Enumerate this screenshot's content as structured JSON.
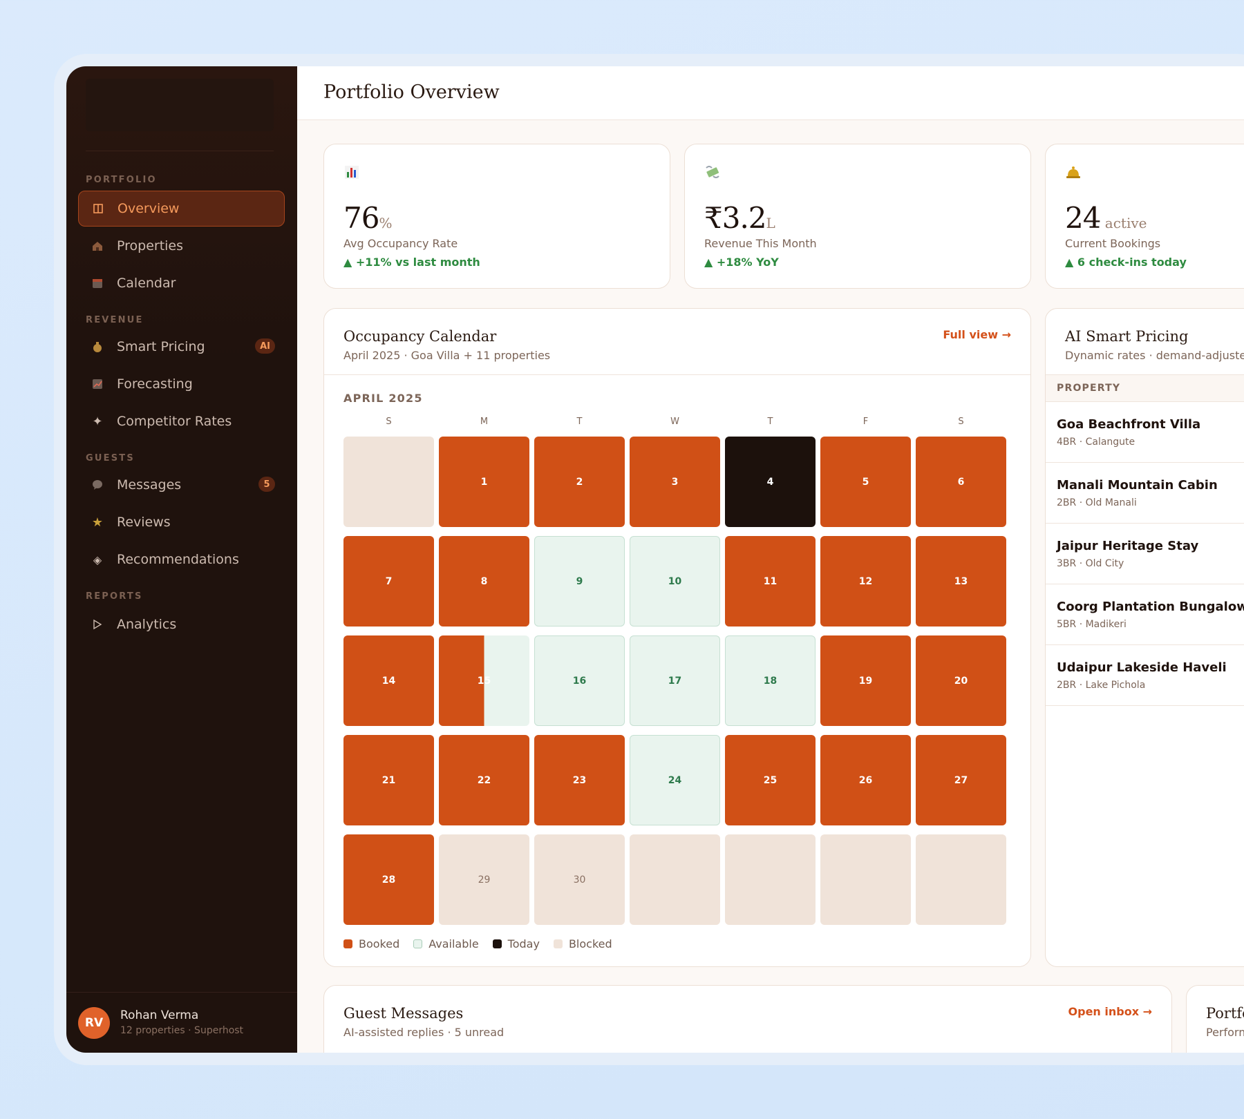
{
  "sidebar": {
    "sections": [
      {
        "label": "PORTFOLIO"
      },
      {
        "label": "REVENUE"
      },
      {
        "label": "GUESTS"
      },
      {
        "label": "REPORTS"
      }
    ],
    "items": [
      {
        "label": "Overview",
        "icon": "grid-icon"
      },
      {
        "label": "Properties",
        "icon": "house-icon"
      },
      {
        "label": "Calendar",
        "icon": "calendar-icon"
      },
      {
        "label": "Smart Pricing",
        "icon": "money-bag-icon",
        "badge": "AI"
      },
      {
        "label": "Forecasting",
        "icon": "chart-up-icon"
      },
      {
        "label": "Competitor Rates",
        "icon": "sparkle-icon"
      },
      {
        "label": "Messages",
        "icon": "speech-bubble-icon",
        "badge": "5"
      },
      {
        "label": "Reviews",
        "icon": "star-icon"
      },
      {
        "label": "Recommendations",
        "icon": "diamond-icon"
      },
      {
        "label": "Analytics",
        "icon": "play-outline-icon"
      }
    ],
    "user": {
      "initials": "RV",
      "name": "Rohan Verma",
      "sub": "12 properties · Superhost"
    }
  },
  "header": {
    "title": "Portfolio Overview"
  },
  "kpis": [
    {
      "icon": "bar-chart-icon",
      "value": "76",
      "unit": "%",
      "label": "Avg Occupancy Rate",
      "delta": "▲ +11% vs last month"
    },
    {
      "icon": "money-wings-icon",
      "value": "₹3.2",
      "unit": "L",
      "label": "Revenue This Month",
      "delta": "▲ +18% YoY"
    },
    {
      "icon": "bell-icon",
      "value": "24",
      "unit": " active",
      "label": "Current Bookings",
      "delta": "▲ 6 check-ins today"
    }
  ],
  "calendar": {
    "title": "Occupancy Calendar",
    "subtitle": "April 2025 · Goa Villa + 11 properties",
    "link": "Full view →",
    "month": "APRIL 2025",
    "weekdays": [
      "S",
      "M",
      "T",
      "W",
      "T",
      "F",
      "S"
    ],
    "days": [
      {
        "n": "",
        "s": "blocked"
      },
      {
        "n": "1",
        "s": "booked"
      },
      {
        "n": "2",
        "s": "booked"
      },
      {
        "n": "3",
        "s": "booked"
      },
      {
        "n": "4",
        "s": "today"
      },
      {
        "n": "5",
        "s": "booked"
      },
      {
        "n": "6",
        "s": "booked"
      },
      {
        "n": "7",
        "s": "booked"
      },
      {
        "n": "8",
        "s": "booked"
      },
      {
        "n": "9",
        "s": "available"
      },
      {
        "n": "10",
        "s": "available"
      },
      {
        "n": "11",
        "s": "booked"
      },
      {
        "n": "12",
        "s": "booked"
      },
      {
        "n": "13",
        "s": "booked"
      },
      {
        "n": "14",
        "s": "booked"
      },
      {
        "n": "15",
        "s": "split"
      },
      {
        "n": "16",
        "s": "available"
      },
      {
        "n": "17",
        "s": "available"
      },
      {
        "n": "18",
        "s": "available"
      },
      {
        "n": "19",
        "s": "booked"
      },
      {
        "n": "20",
        "s": "booked"
      },
      {
        "n": "21",
        "s": "booked"
      },
      {
        "n": "22",
        "s": "booked"
      },
      {
        "n": "23",
        "s": "booked"
      },
      {
        "n": "24",
        "s": "available"
      },
      {
        "n": "25",
        "s": "booked"
      },
      {
        "n": "26",
        "s": "booked"
      },
      {
        "n": "27",
        "s": "booked"
      },
      {
        "n": "28",
        "s": "booked"
      },
      {
        "n": "29",
        "s": "blocked"
      },
      {
        "n": "30",
        "s": "blocked"
      },
      {
        "n": "",
        "s": "blocked"
      },
      {
        "n": "",
        "s": "blocked"
      },
      {
        "n": "",
        "s": "blocked"
      },
      {
        "n": "",
        "s": "blocked"
      }
    ],
    "legend": [
      {
        "label": "Booked",
        "color": "#d05016"
      },
      {
        "label": "Available",
        "color": "#e9f4ee"
      },
      {
        "label": "Today",
        "color": "#1c110c"
      },
      {
        "label": "Blocked",
        "color": "#f0e3d9"
      }
    ]
  },
  "pricing": {
    "title": "AI Smart Pricing",
    "subtitle": "Dynamic rates · demand-adjusted",
    "column": "PROPERTY",
    "properties": [
      {
        "name": "Goa Beachfront Villa",
        "sub": "4BR · Calangute"
      },
      {
        "name": "Manali Mountain Cabin",
        "sub": "2BR · Old Manali"
      },
      {
        "name": "Jaipur Heritage Stay",
        "sub": "3BR · Old City"
      },
      {
        "name": "Coorg Plantation Bungalow",
        "sub": "5BR · Madikeri"
      },
      {
        "name": "Udaipur Lakeside Haveli",
        "sub": "2BR · Lake Pichola"
      }
    ]
  },
  "messages": {
    "title": "Guest Messages",
    "subtitle": "AI-assisted replies · 5 unread",
    "link": "Open inbox →"
  },
  "portfolio_card": {
    "title": "Portfo",
    "subtitle": "Perform"
  },
  "colors": {
    "accent": "#d05016",
    "sidebar": "#1f120d",
    "positive": "#2e8b40"
  }
}
